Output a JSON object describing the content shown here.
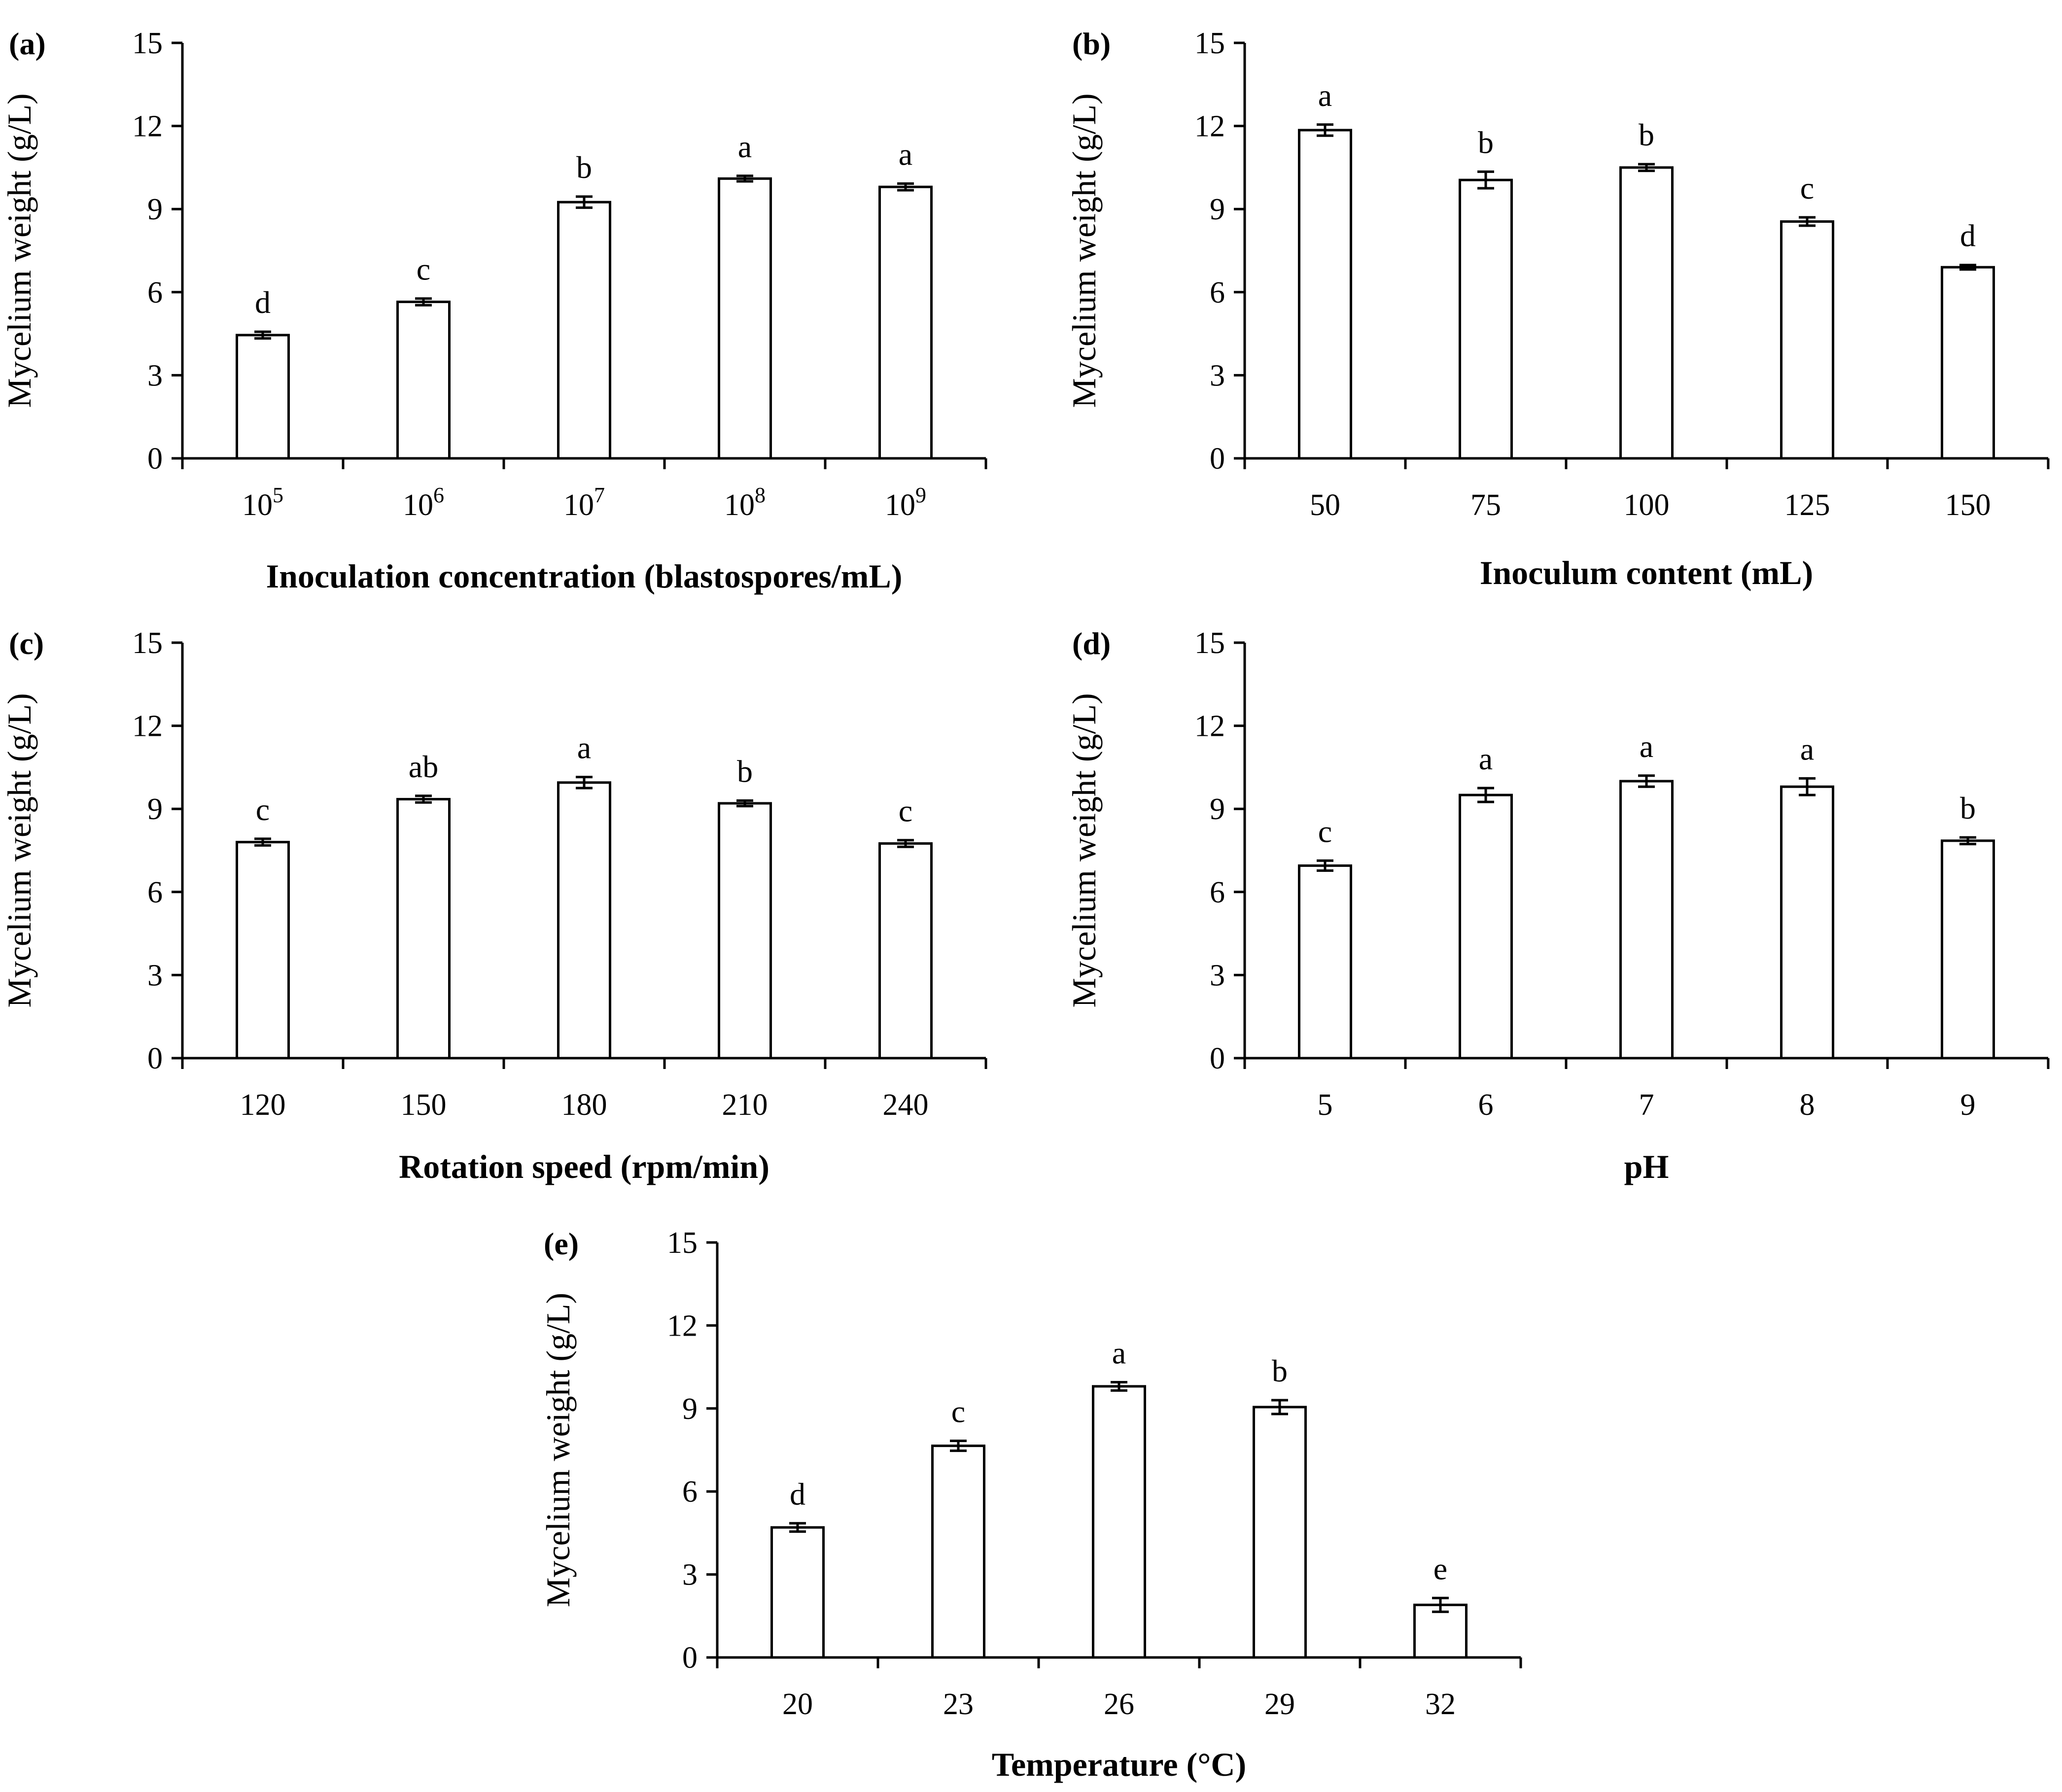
{
  "chart_data": [
    {
      "id": "a",
      "type": "bar",
      "panel_label": "(a)",
      "categories": [
        {
          "base": "10",
          "exp": "5"
        },
        {
          "base": "10",
          "exp": "6"
        },
        {
          "base": "10",
          "exp": "7"
        },
        {
          "base": "10",
          "exp": "8"
        },
        {
          "base": "10",
          "exp": "9"
        }
      ],
      "values": [
        4.45,
        5.65,
        9.25,
        10.1,
        9.8
      ],
      "errors": [
        0.12,
        0.12,
        0.2,
        0.1,
        0.12
      ],
      "significance": [
        "d",
        "c",
        "b",
        "a",
        "a"
      ],
      "xlabel": "Inoculation concentration (blastospores/mL)",
      "ylabel": "Mycelium weight (g/L)",
      "ylim": [
        0,
        15
      ],
      "yticks": [
        "0",
        "3",
        "6",
        "9",
        "12",
        "15"
      ]
    },
    {
      "id": "b",
      "type": "bar",
      "panel_label": "(b)",
      "categories": [
        "50",
        "75",
        "100",
        "125",
        "150"
      ],
      "values": [
        11.85,
        10.05,
        10.5,
        8.55,
        6.9
      ],
      "errors": [
        0.2,
        0.3,
        0.12,
        0.15,
        0.08
      ],
      "significance": [
        "a",
        "b",
        "b",
        "c",
        "d"
      ],
      "xlabel": "Inoculum content (mL)",
      "ylabel": "Mycelium weight (g/L)",
      "ylim": [
        0,
        15
      ],
      "yticks": [
        "0",
        "3",
        "6",
        "9",
        "12",
        "15"
      ]
    },
    {
      "id": "c",
      "type": "bar",
      "panel_label": "(c)",
      "categories": [
        "120",
        "150",
        "180",
        "210",
        "240"
      ],
      "values": [
        7.8,
        9.35,
        9.95,
        9.2,
        7.75
      ],
      "errors": [
        0.12,
        0.12,
        0.2,
        0.1,
        0.12
      ],
      "significance": [
        "c",
        "ab",
        "a",
        "b",
        "c"
      ],
      "xlabel": "Rotation speed (rpm/min)",
      "ylabel": "Mycelium weight (g/L)",
      "ylim": [
        0,
        15
      ],
      "yticks": [
        "0",
        "3",
        "6",
        "9",
        "12",
        "15"
      ]
    },
    {
      "id": "d",
      "type": "bar",
      "panel_label": "(d)",
      "categories": [
        "5",
        "6",
        "7",
        "8",
        "9"
      ],
      "values": [
        6.95,
        9.5,
        10.0,
        9.8,
        7.85
      ],
      "errors": [
        0.18,
        0.25,
        0.2,
        0.3,
        0.12
      ],
      "significance": [
        "c",
        "a",
        "a",
        "a",
        "b"
      ],
      "xlabel": "pH",
      "ylabel": "Mycelium weight (g/L)",
      "ylim": [
        0,
        15
      ],
      "yticks": [
        "0",
        "3",
        "6",
        "9",
        "12",
        "15"
      ]
    },
    {
      "id": "e",
      "type": "bar",
      "panel_label": "(e)",
      "categories": [
        "20",
        "23",
        "26",
        "29",
        "32"
      ],
      "values": [
        4.7,
        7.65,
        9.8,
        9.05,
        1.9
      ],
      "errors": [
        0.15,
        0.18,
        0.15,
        0.25,
        0.25
      ],
      "significance": [
        "d",
        "c",
        "a",
        "b",
        "e"
      ],
      "xlabel": "Temperature (°C)",
      "ylabel": "Mycelium weight (g/L)",
      "ylim": [
        0,
        15
      ],
      "yticks": [
        "0",
        "3",
        "6",
        "9",
        "12",
        "15"
      ]
    }
  ]
}
